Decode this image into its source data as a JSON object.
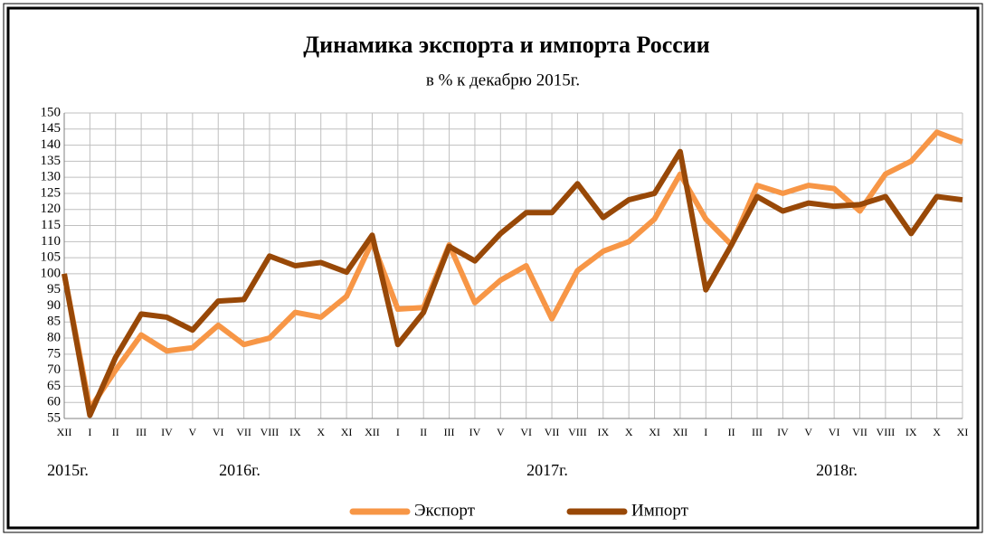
{
  "chart_data": {
    "type": "line",
    "title": "Динамика экспорта и импорта России",
    "subtitle": "в % к декабрю 2015г.",
    "categories": [
      "XII",
      "I",
      "II",
      "III",
      "IV",
      "V",
      "VI",
      "VII",
      "VIII",
      "IX",
      "X",
      "XI",
      "XII",
      "I",
      "II",
      "III",
      "IV",
      "V",
      "VI",
      "VII",
      "VIII",
      "IX",
      "X",
      "XI",
      "XII",
      "I",
      "II",
      "III",
      "IV",
      "V",
      "VI",
      "VII",
      "VIII",
      "IX",
      "X",
      "XI"
    ],
    "year_labels": [
      "2015г.",
      "2016г.",
      "2017г.",
      "2018г."
    ],
    "series": [
      {
        "name": "Экспорт",
        "color": "#f79646",
        "values": [
          100,
          58,
          70,
          81,
          76,
          77,
          84,
          78,
          80,
          88,
          86.5,
          93,
          110,
          89,
          89.5,
          109,
          91,
          98,
          102.5,
          86,
          101,
          107,
          110,
          117,
          131,
          117,
          109,
          127.5,
          125,
          127.5,
          126.5,
          119.5,
          131,
          135,
          144,
          141
        ]
      },
      {
        "name": "Импорт",
        "color": "#984807",
        "values": [
          100,
          56,
          74,
          87.5,
          86.5,
          82.5,
          91.5,
          92,
          105.5,
          102.5,
          103.5,
          100.5,
          112,
          78,
          88,
          108.5,
          104,
          112.5,
          119,
          119,
          128,
          117.5,
          123,
          125,
          138,
          95,
          109,
          124,
          119.5,
          122,
          121,
          121.5,
          124,
          112.5,
          124,
          123
        ]
      }
    ],
    "ylim": [
      55,
      150
    ],
    "yticks": [
      55,
      60,
      65,
      70,
      75,
      80,
      85,
      90,
      95,
      100,
      105,
      110,
      115,
      120,
      125,
      130,
      135,
      140,
      145,
      150
    ],
    "grid": true
  }
}
